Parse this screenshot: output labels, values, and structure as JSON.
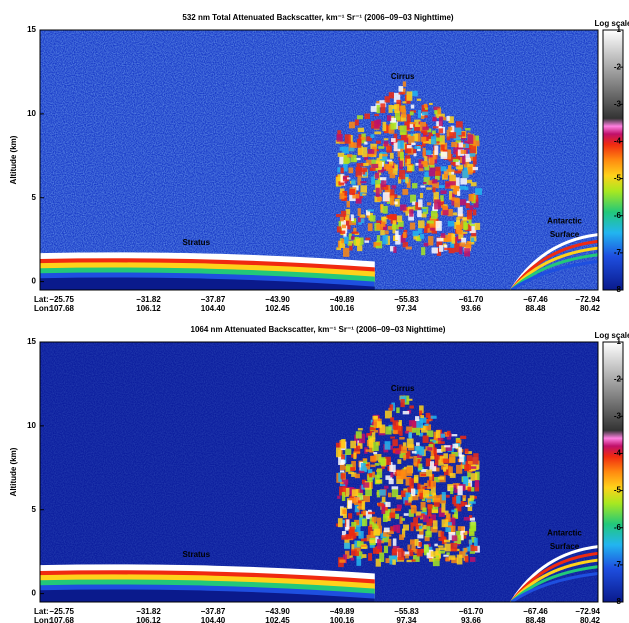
{
  "chart_data": [
    {
      "type": "heatmap",
      "title": "532 nm Total Attenuated Backscatter, km⁻¹ Sr⁻¹ (2006−09−03 Nighttime)",
      "y_label": "Altitude (km)",
      "ylim": [
        -0.5,
        15
      ],
      "yticks": [
        0,
        5,
        10,
        15
      ],
      "lat_label": "Lat:",
      "lon_label": "Lon:",
      "lat": [
        "−25.75",
        "−31.82",
        "−37.87",
        "−43.90",
        "−49.89",
        "−55.83",
        "−61.70",
        "−67.46",
        "−72.94"
      ],
      "lon": [
        "107.68",
        "106.12",
        "104.40",
        "102.45",
        "100.16",
        "97.34",
        "93.66",
        "88.48",
        "80.42"
      ],
      "annotations": [
        "Cirrus",
        "Stratus",
        "Antarctic",
        "Surface"
      ],
      "colorbar_label": "Log scale",
      "clim": [
        -8,
        -1
      ],
      "cticks": [
        -1,
        -2,
        -3,
        -4,
        -5,
        -6,
        -7,
        -8
      ]
    },
    {
      "type": "heatmap",
      "title": "1064 nm Attenuated Backscatter, km⁻¹ Sr⁻¹ (2006−09−03 Nighttime)",
      "y_label": "Altitude (km)",
      "ylim": [
        -0.5,
        15
      ],
      "yticks": [
        0,
        5,
        10,
        15
      ],
      "lat_label": "Lat:",
      "lon_label": "Lon:",
      "lat": [
        "−25.75",
        "−31.82",
        "−37.87",
        "−43.90",
        "−49.89",
        "−55.83",
        "−61.70",
        "−67.46",
        "−72.94"
      ],
      "lon": [
        "107.68",
        "106.12",
        "104.40",
        "102.45",
        "100.16",
        "97.34",
        "93.66",
        "88.48",
        "80.42"
      ],
      "annotations": [
        "Cirrus",
        "Stratus",
        "Antarctic",
        "Surface"
      ],
      "colorbar_label": "Log scale",
      "clim": [
        -8,
        -1
      ],
      "cticks": [
        -1,
        -2,
        -3,
        -4,
        -5,
        -6,
        -7,
        -8
      ]
    }
  ]
}
